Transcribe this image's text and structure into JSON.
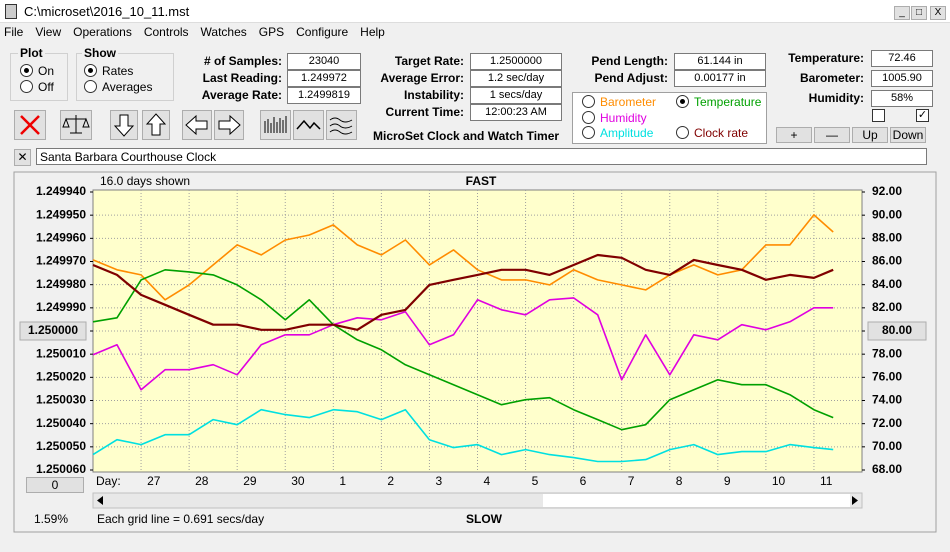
{
  "window": {
    "title": "C:\\microset\\2016_10_11.mst"
  },
  "menu": [
    "File",
    "View",
    "Operations",
    "Controls",
    "Watches",
    "GPS",
    "Configure",
    "Help"
  ],
  "plot_group": {
    "title": "Plot",
    "options": [
      "On",
      "Off"
    ]
  },
  "show_group": {
    "title": "Show",
    "options": [
      "Rates",
      "Averages"
    ]
  },
  "readouts": [
    {
      "label": "# of Samples:",
      "value": "23040"
    },
    {
      "label": "Last Reading:",
      "value": "1.249972"
    },
    {
      "label": "Average Rate:",
      "value": "1.2499819"
    },
    {
      "label": "Target Rate:",
      "value": "1.2500000"
    },
    {
      "label": "Average Error:",
      "value": "1.2 sec/day"
    },
    {
      "label": "Instability:",
      "value": "1 secs/day"
    },
    {
      "label": "Current Time:",
      "value": "12:00:23 AM"
    },
    {
      "label": "Pend Length:",
      "value": "61.144 in"
    },
    {
      "label": "Pend Adjust:",
      "value": "0.00177 in"
    },
    {
      "label": "Temperature:",
      "value": "72.46"
    },
    {
      "label": "Barometer:",
      "value": "1005.90"
    },
    {
      "label": "Humidity:",
      "value": "58%"
    }
  ],
  "buttons": [
    "+",
    "—",
    "Up",
    "Down"
  ],
  "app_label": "MicroSet Clock and Watch Timer",
  "clock_name": "Santa Barbara Courthouse Clock",
  "status": {
    "zero_button": "0",
    "percent": "1.59%",
    "grid_note": "Each grid line = 0.691 secs/day"
  },
  "chart_data": {
    "type": "line",
    "days_shown": "16.0 days shown",
    "top_label": "FAST",
    "bottom_label": "SLOW",
    "x_label": "Day:",
    "grid": true,
    "x": [
      0,
      0.5,
      1,
      1.5,
      2,
      2.5,
      3,
      3.5,
      4,
      4.5,
      5,
      5.5,
      6,
      6.5,
      7,
      7.5,
      8,
      8.5,
      9,
      9.5,
      10,
      10.5,
      11,
      11.5,
      12,
      12.5,
      13,
      13.5,
      14,
      14.5,
      15,
      15.4
    ],
    "xlim": [
      0,
      16
    ],
    "xticks": [
      {
        "value": 1,
        "label": "27"
      },
      {
        "value": 2,
        "label": "28"
      },
      {
        "value": 3,
        "label": "29"
      },
      {
        "value": 4,
        "label": "30"
      },
      {
        "value": 5,
        "label": "1"
      },
      {
        "value": 6,
        "label": "2"
      },
      {
        "value": 7,
        "label": "3"
      },
      {
        "value": 8,
        "label": "4"
      },
      {
        "value": 9,
        "label": "5"
      },
      {
        "value": 10,
        "label": "6"
      },
      {
        "value": 11,
        "label": "7"
      },
      {
        "value": 12,
        "label": "8"
      },
      {
        "value": 13,
        "label": "9"
      },
      {
        "value": 14,
        "label": "10"
      },
      {
        "value": 15,
        "label": "11"
      }
    ],
    "ylim": [
      1.25006,
      1.24994
    ],
    "yticks": [
      {
        "value": 1.24994,
        "label": "1.249940"
      },
      {
        "value": 1.24995,
        "label": "1.249950"
      },
      {
        "value": 1.24996,
        "label": "1.249960"
      },
      {
        "value": 1.24997,
        "label": "1.249970"
      },
      {
        "value": 1.24998,
        "label": "1.249980"
      },
      {
        "value": 1.24999,
        "label": "1.249990"
      },
      {
        "value": 1.25,
        "label": "1.250000"
      },
      {
        "value": 1.25001,
        "label": "1.250010"
      },
      {
        "value": 1.25002,
        "label": "1.250020"
      },
      {
        "value": 1.25003,
        "label": "1.250030"
      },
      {
        "value": 1.25004,
        "label": "1.250040"
      },
      {
        "value": 1.25005,
        "label": "1.250050"
      },
      {
        "value": 1.25006,
        "label": "1.250060"
      }
    ],
    "y2lim": [
      68,
      92
    ],
    "y2ticks": [
      {
        "value": 92,
        "label": "92.00"
      },
      {
        "value": 90,
        "label": "90.00"
      },
      {
        "value": 88,
        "label": "88.00"
      },
      {
        "value": 86,
        "label": "86.00"
      },
      {
        "value": 84,
        "label": "84.00"
      },
      {
        "value": 82,
        "label": "82.00"
      },
      {
        "value": 80,
        "label": "80.00"
      },
      {
        "value": 78,
        "label": "78.00"
      },
      {
        "value": 76,
        "label": "76.00"
      },
      {
        "value": 74,
        "label": "74.00"
      },
      {
        "value": 72,
        "label": "72.00"
      },
      {
        "value": 70,
        "label": "70.00"
      },
      {
        "value": 68,
        "label": "68.00"
      }
    ],
    "series": [
      {
        "name": "Barometer",
        "color": "#ff8c00",
        "axis": "y2",
        "values": [
          86.14,
          85.28,
          84.84,
          82.69,
          83.98,
          85.71,
          87.43,
          86.57,
          87.86,
          88.29,
          89.16,
          87.43,
          86.57,
          87.86,
          85.71,
          87.0,
          85.28,
          84.41,
          84.41,
          83.98,
          85.28,
          84.41,
          83.98,
          83.55,
          84.84,
          85.71,
          84.84,
          85.28,
          87.43,
          87.43,
          90.02,
          88.55
        ]
      },
      {
        "name": "Temperature",
        "color": "#00a000",
        "axis": "y2",
        "values": [
          80.79,
          81.14,
          84.41,
          85.28,
          85.1,
          84.84,
          83.98,
          82.69,
          80.97,
          82.69,
          80.54,
          79.24,
          78.38,
          77.08,
          76.22,
          75.36,
          74.5,
          73.64,
          74.07,
          74.24,
          73.21,
          72.35,
          71.48,
          71.91,
          74.07,
          74.93,
          75.79,
          75.36,
          75.36,
          74.5,
          73.21,
          72.52
        ]
      },
      {
        "name": "Humidity",
        "color": "#e000e0",
        "axis": "y2",
        "values": [
          77.95,
          78.81,
          74.93,
          76.66,
          76.66,
          77.09,
          76.22,
          78.81,
          79.67,
          79.67,
          80.54,
          81.14,
          80.97,
          81.66,
          78.81,
          79.67,
          82.69,
          81.83,
          81.4,
          82.69,
          82.86,
          81.4,
          75.79,
          79.67,
          76.22,
          79.67,
          79.24,
          80.54,
          80.1,
          80.79,
          82.0,
          82.0
        ]
      },
      {
        "name": "Amplitude",
        "color": "#00e0e0",
        "axis": "y2",
        "values": [
          69.33,
          70.62,
          70.19,
          71.05,
          71.05,
          72.35,
          71.91,
          73.21,
          72.78,
          72.52,
          73.21,
          73.03,
          72.35,
          73.21,
          70.62,
          69.93,
          70.19,
          69.33,
          69.76,
          69.33,
          69.07,
          68.73,
          68.73,
          68.9,
          69.76,
          70.19,
          69.33,
          69.59,
          69.59,
          70.19,
          69.93,
          69.76
        ]
      },
      {
        "name": "Clock rate",
        "color": "#800000",
        "axis": "y",
        "values": [
          1.2499715,
          1.2499758,
          1.2499844,
          1.2499887,
          1.249993,
          1.2499973,
          1.2499973,
          1.2499995,
          1.2499995,
          1.2499973,
          1.2499973,
          1.2499995,
          1.249993,
          1.2499909,
          1.2499801,
          1.2499779,
          1.2499758,
          1.2499736,
          1.2499736,
          1.2499758,
          1.2499715,
          1.2499672,
          1.2499684,
          1.2499736,
          1.2499758,
          1.2499693,
          1.2499715,
          1.2499736,
          1.2499779,
          1.2499758,
          1.2499771,
          1.2499736
        ]
      }
    ]
  }
}
